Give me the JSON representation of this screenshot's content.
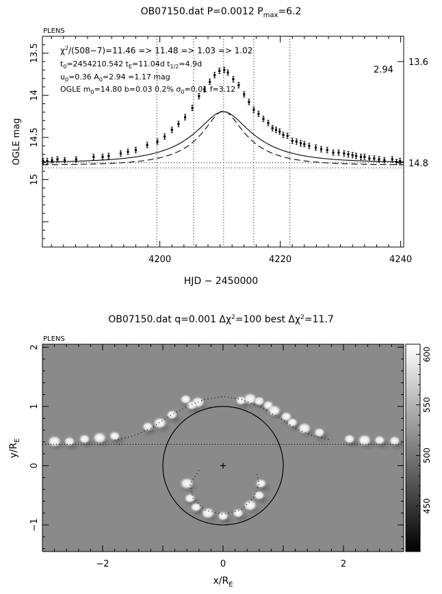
{
  "chart_data": [
    {
      "type": "line",
      "panel_tag": "PLENS",
      "title": {
        "base": "OB07150.dat P=0.0012 P",
        "sub": "max",
        "tail": "=6.2"
      },
      "xlabel": "HJD − 2450000",
      "ylabel": "OGLE mag",
      "xlim": [
        4180.5,
        4240.5
      ],
      "ylim": [
        15.8,
        13.3
      ],
      "y_inverted": true,
      "xticks": [
        4200,
        4220,
        4240
      ],
      "xtick_labels": [
        "4200",
        "4220",
        "4240"
      ],
      "yticks": [
        13.5,
        14,
        14.5,
        15
      ],
      "ytick_labels": [
        "13.5",
        "14",
        "14.5",
        "15"
      ],
      "right_ticks": [
        {
          "label": "13.6",
          "value": 13.6
        },
        {
          "label": "14.8",
          "value": 14.8
        }
      ],
      "right_annotation": "2.94",
      "vlines_x": [
        4199.5,
        4205.6,
        4210.6,
        4215.6,
        4221.6
      ],
      "hlines_y": [
        14.8,
        14.86
      ],
      "annotations": {
        "line1": {
          "chi": "χ",
          "sup": "2",
          "text": "/(508−7)=11.46 => 11.48 => 1.03 => 1.02"
        },
        "line2": {
          "a": "t",
          "a_sub": "0",
          "b": "=2454210.542  t",
          "b_sub": "E",
          "c": "=11.04d  t",
          "c_sub": "1/2",
          "d": "=4.9d"
        },
        "line3": {
          "a": "u",
          "a_sub": "0",
          "b": "=0.36  A",
          "b_sub": "0",
          "c": "=2.94 =1.17 mag"
        },
        "line4": {
          "a": "OGLE  m",
          "a_sub": "0",
          "b": "=14.80  b=0.03  0.2%  σ",
          "b_sub": "0",
          "c": "=0.01  f=3.12"
        }
      },
      "model": {
        "t0": 4210.542,
        "tE": 11.04,
        "u0": 0.36,
        "m0": 14.8,
        "baseline": 14.8
      },
      "series": [
        {
          "style": "solid",
          "values_description": ""
        },
        {
          "style": "dashed"
        }
      ],
      "data_points": {
        "x": [
          4180.6,
          4181.3,
          4182.1,
          4183.0,
          4184.2,
          4186.1,
          4189.0,
          4190.5,
          4191.5,
          4193.5,
          4194.7,
          4196.0,
          4197.9,
          4199.6,
          4200.8,
          4202.0,
          4203.1,
          4204.2,
          4205.4,
          4206.5,
          4207.4,
          4208.3,
          4209.1,
          4209.9,
          4210.7,
          4211.3,
          4212.2,
          4213.1,
          4214.0,
          4214.8,
          4215.6,
          4216.4,
          4217.2,
          4218.0,
          4218.7,
          4219.3,
          4219.9,
          4220.5,
          4221.2,
          4222.0,
          4222.7,
          4223.4,
          4224.0,
          4224.8,
          4225.9,
          4226.8,
          4227.8,
          4228.8,
          4229.7,
          4230.6,
          4231.3,
          4232.0,
          4232.6,
          4233.4,
          4234.0,
          4234.8,
          4235.6,
          4236.4,
          4237.3,
          4238.6,
          4239.3,
          4239.9
        ],
        "y": [
          14.78,
          14.78,
          14.77,
          14.76,
          14.77,
          14.76,
          14.73,
          14.73,
          14.72,
          14.69,
          14.67,
          14.65,
          14.59,
          14.55,
          14.49,
          14.41,
          14.34,
          14.26,
          14.15,
          14.01,
          13.93,
          13.84,
          13.76,
          13.71,
          13.7,
          13.73,
          13.81,
          13.88,
          13.99,
          14.08,
          14.17,
          14.22,
          14.28,
          14.33,
          14.39,
          14.41,
          14.43,
          14.47,
          14.48,
          14.54,
          14.55,
          14.57,
          14.58,
          14.6,
          14.62,
          14.64,
          14.65,
          14.68,
          14.68,
          14.69,
          14.7,
          14.71,
          14.72,
          14.73,
          14.73,
          14.75,
          14.75,
          14.76,
          14.77,
          14.76,
          14.79,
          14.78
        ]
      }
    },
    {
      "type": "heatmap",
      "panel_tag": "PLENS",
      "title": {
        "base": "OB07150.dat q=0.001 Δχ",
        "sup1": "2",
        "mid": "=100 best Δχ",
        "sup2": "2",
        "tail": "=11.7"
      },
      "xlabel": {
        "base": "x/R",
        "sub": "E"
      },
      "ylabel": {
        "base": "y/R",
        "sub": "E"
      },
      "xlim": [
        -3,
        3
      ],
      "ylim": [
        -1.45,
        2.05
      ],
      "xticks": [
        -2,
        0,
        2
      ],
      "xtick_labels": [
        "−2",
        "0",
        "2"
      ],
      "yticks": [
        -1,
        0,
        1,
        2
      ],
      "ytick_labels": [
        "−1",
        "0",
        "1",
        "2"
      ],
      "colorbar": {
        "min": 405,
        "max": 610,
        "ticks": [
          450,
          500,
          550,
          600
        ],
        "tick_labels": [
          "450",
          "500",
          "550",
          "600"
        ],
        "colormap": "black-to-white"
      },
      "einstein_ring_radius": 1.0,
      "source_track_y": 0.36,
      "origin_marker": [
        0,
        0
      ],
      "outer_caustic_dots": [
        [
          -1.8,
          0.43
        ],
        [
          -1.5,
          0.5
        ],
        [
          -1.2,
          0.63
        ],
        [
          -0.9,
          0.83
        ],
        [
          -0.6,
          1.0
        ],
        [
          -0.3,
          1.12
        ],
        [
          0,
          1.17
        ],
        [
          0.3,
          1.12
        ],
        [
          0.6,
          1.0
        ],
        [
          0.9,
          0.83
        ],
        [
          1.2,
          0.63
        ],
        [
          1.5,
          0.5
        ],
        [
          1.8,
          0.43
        ]
      ],
      "inner_caustic_dots": [
        [
          -0.4,
          -0.08
        ],
        [
          -0.55,
          -0.3
        ],
        [
          -0.5,
          -0.55
        ],
        [
          -0.3,
          -0.75
        ],
        [
          0,
          -0.82
        ],
        [
          0.3,
          -0.75
        ],
        [
          0.5,
          -0.55
        ],
        [
          0.6,
          -0.3
        ],
        [
          0.55,
          -0.1
        ]
      ],
      "bright_blobs": [
        [
          -2.8,
          0.41
        ],
        [
          -2.55,
          0.41
        ],
        [
          -2.3,
          0.45
        ],
        [
          -2.05,
          0.47
        ],
        [
          -1.8,
          0.5
        ],
        [
          -1.25,
          0.66
        ],
        [
          -1.05,
          0.72
        ],
        [
          -0.85,
          0.86
        ],
        [
          -0.62,
          1.12
        ],
        [
          -0.42,
          1.07
        ],
        [
          -0.52,
          1.02
        ],
        [
          0.3,
          1.1
        ],
        [
          0.45,
          1.13
        ],
        [
          0.6,
          1.09
        ],
        [
          0.75,
          1.02
        ],
        [
          0.85,
          0.93
        ],
        [
          1.05,
          0.83
        ],
        [
          1.15,
          0.73
        ],
        [
          1.35,
          0.63
        ],
        [
          1.6,
          0.56
        ],
        [
          2.1,
          0.45
        ],
        [
          2.35,
          0.43
        ],
        [
          2.6,
          0.43
        ],
        [
          2.85,
          0.42
        ],
        [
          -0.6,
          -0.3
        ],
        [
          -0.55,
          -0.55
        ],
        [
          -0.45,
          -0.7
        ],
        [
          -0.25,
          -0.8
        ],
        [
          0.0,
          -0.85
        ],
        [
          0.25,
          -0.8
        ],
        [
          0.45,
          -0.67
        ],
        [
          0.6,
          -0.5
        ],
        [
          0.63,
          -0.3
        ]
      ]
    }
  ]
}
